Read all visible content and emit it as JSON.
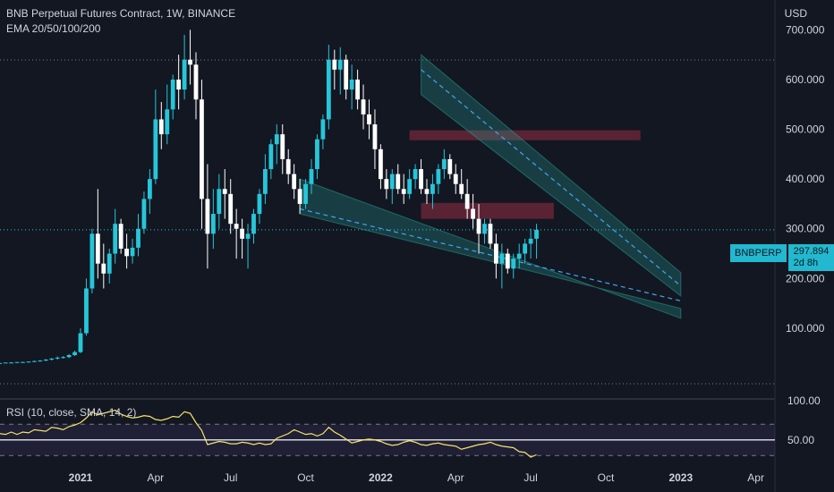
{
  "header": {
    "title": "BNB Perpetual Futures Contract, 1W, BINANCE",
    "indicator": "EMA 20/50/100/200"
  },
  "currency": "USD",
  "rsi_label": "RSI (10, close, SMA, 14, 2)",
  "price_tag": {
    "symbol": "BNBPERP",
    "price": "297.894",
    "countdown": "2d 8h"
  },
  "colors": {
    "bull": "#26c6da",
    "bear": "#ffffff",
    "channel": "#26a69a",
    "resistance": "#b2324a",
    "rsi": "#f5e36b",
    "trend_line": "#42a5f5"
  },
  "chart_data": [
    {
      "type": "candlestick",
      "title": "BNB Perpetual Futures Contract, 1W, BINANCE",
      "ylabel": "USD",
      "ylim": [
        -35,
        760
      ],
      "y_ticks": [
        100,
        200,
        300,
        400,
        500,
        600,
        700
      ],
      "y_tick_labels": [
        "100.000",
        "200.000",
        "300.000",
        "400.000",
        "500.000",
        "600.000",
        "700.000"
      ],
      "x_tick_labels": [
        "2021",
        "Apr",
        "Jul",
        "Oct",
        "2022",
        "Apr",
        "Jul",
        "Oct",
        "2023",
        "Apr"
      ],
      "x_tick_index": [
        0,
        13,
        26,
        39,
        52,
        65,
        78,
        91,
        104,
        117
      ],
      "first_index": -15,
      "last_index": 122,
      "last_price": 297.894,
      "zones": [
        {
          "i0": 57,
          "i1": 97,
          "low": 478,
          "high": 498
        },
        {
          "i0": 59,
          "i1": 82,
          "low": 320,
          "high": 352
        }
      ],
      "channels": [
        {
          "upper": [
            [
              59,
              650
            ],
            [
              104,
              212
            ]
          ],
          "lower": [
            [
              59,
              570
            ],
            [
              104,
              165
            ]
          ],
          "mid": [
            [
              59,
              620
            ],
            [
              104,
              185
            ]
          ]
        },
        {
          "upper": [
            [
              38,
              400
            ],
            [
              104,
              120
            ]
          ],
          "lower": [
            [
              38,
              330
            ],
            [
              104,
              140
            ]
          ],
          "mid": [
            [
              38,
              340
            ],
            [
              104,
              155
            ]
          ]
        }
      ],
      "candles": [
        [
          -15,
          30,
          31,
          29,
          30
        ],
        [
          -14,
          30,
          31,
          29,
          30
        ],
        [
          -13,
          30,
          31,
          30,
          31
        ],
        [
          -12,
          31,
          32,
          30,
          31
        ],
        [
          -11,
          31,
          32,
          30,
          32
        ],
        [
          -10,
          32,
          33,
          31,
          32
        ],
        [
          -9,
          32,
          33,
          31,
          33
        ],
        [
          -8,
          33,
          35,
          32,
          34
        ],
        [
          -7,
          34,
          36,
          33,
          35
        ],
        [
          -6,
          35,
          38,
          34,
          37
        ],
        [
          -5,
          37,
          40,
          35,
          39
        ],
        [
          -4,
          39,
          43,
          37,
          41
        ],
        [
          -3,
          41,
          44,
          39,
          42
        ],
        [
          -2,
          42,
          48,
          40,
          46
        ],
        [
          -1,
          46,
          55,
          44,
          52
        ],
        [
          0,
          52,
          100,
          50,
          90
        ],
        [
          1,
          90,
          200,
          85,
          180
        ],
        [
          2,
          180,
          300,
          170,
          290
        ],
        [
          3,
          290,
          380,
          200,
          230
        ],
        [
          4,
          230,
          270,
          180,
          210
        ],
        [
          5,
          210,
          260,
          190,
          250
        ],
        [
          6,
          250,
          340,
          230,
          310
        ],
        [
          7,
          310,
          320,
          250,
          260
        ],
        [
          8,
          260,
          290,
          220,
          245
        ],
        [
          9,
          245,
          280,
          230,
          262
        ],
        [
          10,
          262,
          330,
          245,
          300
        ],
        [
          11,
          300,
          375,
          290,
          360
        ],
        [
          12,
          360,
          420,
          330,
          400
        ],
        [
          13,
          400,
          580,
          390,
          520
        ],
        [
          14,
          520,
          555,
          460,
          490
        ],
        [
          15,
          490,
          590,
          470,
          540
        ],
        [
          16,
          540,
          610,
          520,
          600
        ],
        [
          17,
          600,
          650,
          540,
          580
        ],
        [
          18,
          580,
          690,
          560,
          640
        ],
        [
          19,
          640,
          700,
          590,
          630
        ],
        [
          20,
          630,
          655,
          520,
          560
        ],
        [
          21,
          560,
          600,
          300,
          360
        ],
        [
          22,
          360,
          430,
          220,
          290
        ],
        [
          23,
          290,
          380,
          260,
          330
        ],
        [
          24,
          330,
          410,
          300,
          380
        ],
        [
          25,
          380,
          420,
          320,
          370
        ],
        [
          26,
          370,
          400,
          290,
          310
        ],
        [
          27,
          310,
          340,
          240,
          300
        ],
        [
          28,
          300,
          320,
          240,
          280
        ],
        [
          29,
          280,
          310,
          220,
          290
        ],
        [
          30,
          290,
          340,
          270,
          330
        ],
        [
          31,
          330,
          380,
          310,
          370
        ],
        [
          32,
          370,
          450,
          350,
          420
        ],
        [
          33,
          420,
          480,
          400,
          470
        ],
        [
          34,
          470,
          510,
          430,
          490
        ],
        [
          35,
          490,
          510,
          410,
          440
        ],
        [
          36,
          440,
          460,
          390,
          410
        ],
        [
          37,
          410,
          430,
          360,
          380
        ],
        [
          38,
          380,
          400,
          330,
          350
        ],
        [
          39,
          350,
          400,
          340,
          390
        ],
        [
          40,
          390,
          440,
          370,
          420
        ],
        [
          41,
          420,
          490,
          400,
          480
        ],
        [
          42,
          480,
          530,
          460,
          520
        ],
        [
          43,
          520,
          670,
          500,
          640
        ],
        [
          44,
          640,
          660,
          580,
          620
        ],
        [
          45,
          620,
          665,
          570,
          640
        ],
        [
          46,
          640,
          650,
          560,
          580
        ],
        [
          47,
          580,
          630,
          540,
          600
        ],
        [
          48,
          600,
          620,
          540,
          560
        ],
        [
          49,
          560,
          590,
          500,
          530
        ],
        [
          50,
          530,
          560,
          480,
          510
        ],
        [
          51,
          510,
          540,
          420,
          460
        ],
        [
          52,
          460,
          470,
          380,
          400
        ],
        [
          53,
          400,
          420,
          360,
          380
        ],
        [
          54,
          380,
          420,
          350,
          410
        ],
        [
          55,
          410,
          430,
          370,
          380
        ],
        [
          56,
          380,
          410,
          350,
          370
        ],
        [
          57,
          370,
          420,
          360,
          400
        ],
        [
          58,
          400,
          430,
          380,
          420
        ],
        [
          59,
          420,
          440,
          370,
          380
        ],
        [
          60,
          380,
          400,
          350,
          370
        ],
        [
          61,
          370,
          410,
          340,
          390
        ],
        [
          62,
          390,
          430,
          370,
          420
        ],
        [
          63,
          420,
          460,
          400,
          440
        ],
        [
          64,
          440,
          450,
          400,
          410
        ],
        [
          65,
          410,
          430,
          370,
          390
        ],
        [
          66,
          390,
          420,
          360,
          370
        ],
        [
          67,
          370,
          400,
          320,
          340
        ],
        [
          68,
          340,
          370,
          300,
          320
        ],
        [
          69,
          320,
          350,
          250,
          290
        ],
        [
          70,
          290,
          320,
          270,
          310
        ],
        [
          71,
          310,
          320,
          260,
          270
        ],
        [
          72,
          270,
          290,
          200,
          230
        ],
        [
          73,
          230,
          270,
          180,
          250
        ],
        [
          74,
          250,
          260,
          210,
          220
        ],
        [
          75,
          220,
          250,
          200,
          240
        ],
        [
          76,
          240,
          270,
          220,
          250
        ],
        [
          77,
          250,
          280,
          230,
          270
        ],
        [
          78,
          270,
          300,
          240,
          280
        ],
        [
          79,
          280,
          310,
          240,
          297.894
        ]
      ]
    },
    {
      "type": "line",
      "title": "RSI (10, close, SMA, 14, 2)",
      "ylim": [
        20,
        100
      ],
      "y_ticks": [
        50,
        100
      ],
      "y_tick_labels": [
        "50.00",
        "100.00"
      ],
      "bands": [
        30,
        70
      ],
      "x": [
        -15,
        -14,
        -13,
        -12,
        -11,
        -10,
        -9,
        -8,
        -7,
        -6,
        -5,
        -4,
        -3,
        -2,
        -1,
        0,
        1,
        2,
        3,
        4,
        5,
        6,
        7,
        8,
        9,
        10,
        11,
        12,
        13,
        14,
        15,
        16,
        17,
        18,
        19,
        20,
        21,
        22,
        23,
        24,
        25,
        26,
        27,
        28,
        29,
        30,
        31,
        32,
        33,
        34,
        35,
        36,
        37,
        38,
        39,
        40,
        41,
        42,
        43,
        44,
        45,
        46,
        47,
        48,
        49,
        50,
        51,
        52,
        53,
        54,
        55,
        56,
        57,
        58,
        59,
        60,
        61,
        62,
        63,
        64,
        65,
        66,
        67,
        68,
        69,
        70,
        71,
        72,
        73,
        74,
        75,
        76,
        77,
        78,
        79
      ],
      "values": [
        58,
        58,
        57,
        60,
        57,
        60,
        59,
        63,
        62,
        61,
        66,
        65,
        63,
        67,
        69,
        72,
        78,
        86,
        82,
        84,
        86,
        88,
        83,
        80,
        78,
        79,
        81,
        80,
        76,
        75,
        77,
        80,
        79,
        86,
        84,
        72,
        62,
        44,
        46,
        48,
        47,
        45,
        45,
        47,
        46,
        44,
        46,
        44,
        45,
        52,
        55,
        58,
        63,
        60,
        57,
        58,
        55,
        58,
        66,
        60,
        56,
        51,
        46,
        48,
        50,
        51,
        50,
        48,
        45,
        43,
        44,
        47,
        49,
        47,
        44,
        43,
        45,
        46,
        44,
        43,
        42,
        38,
        40,
        42,
        44,
        45,
        47,
        44,
        42,
        41,
        40,
        35,
        34,
        28,
        31
      ]
    }
  ]
}
